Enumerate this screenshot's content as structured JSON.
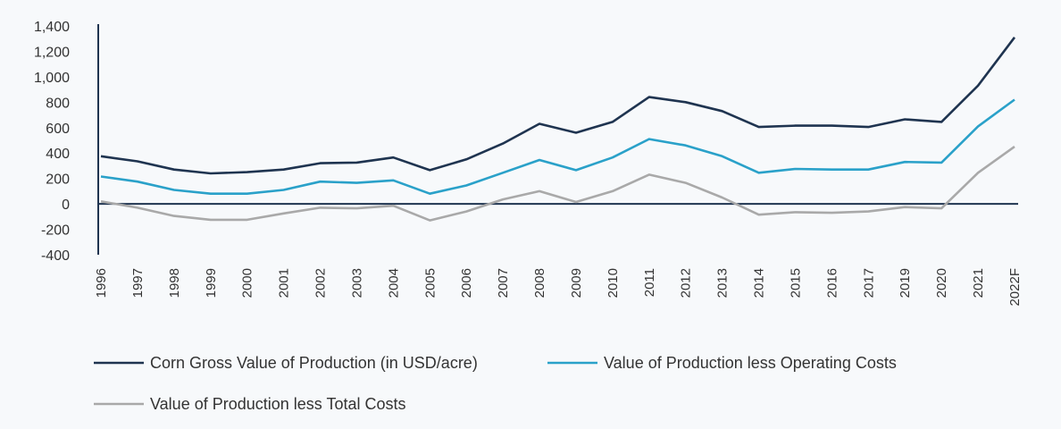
{
  "chart_data": {
    "type": "line",
    "title": "",
    "xlabel": "",
    "ylabel": "",
    "ylim": [
      -400,
      1400
    ],
    "yticks": [
      "1,400",
      "1,200",
      "1,000",
      "800",
      "600",
      "400",
      "200",
      "0",
      "-200",
      "-400"
    ],
    "ytick_values": [
      1400,
      1200,
      1000,
      800,
      600,
      400,
      200,
      0,
      -200,
      -400
    ],
    "categories": [
      "1996",
      "1997",
      "1998",
      "1999",
      "2000",
      "2001",
      "2002",
      "2003",
      "2004",
      "2005",
      "2006",
      "2007",
      "2008",
      "2009",
      "2010",
      "2011",
      "2012",
      "2013",
      "2014",
      "2015",
      "2016",
      "2017",
      "2019",
      "2020",
      "2021",
      "2022F"
    ],
    "grid": false,
    "legend_position": "bottom",
    "series": [
      {
        "name": "Corn Gross Value of Production (in USD/acre)",
        "color": "#1f3450",
        "values": [
          375,
          335,
          270,
          240,
          250,
          270,
          320,
          325,
          365,
          265,
          350,
          475,
          630,
          560,
          645,
          840,
          800,
          730,
          605,
          615,
          615,
          605,
          665,
          645,
          930,
          1310
        ]
      },
      {
        "name": "Value of Production less Operating Costs",
        "color": "#2aa1c9",
        "values": [
          215,
          175,
          110,
          80,
          80,
          110,
          175,
          165,
          185,
          80,
          145,
          245,
          345,
          265,
          365,
          510,
          460,
          375,
          245,
          275,
          270,
          270,
          330,
          325,
          610,
          820
        ]
      },
      {
        "name": "Value of Production less Total Costs",
        "color": "#a9a9a9",
        "values": [
          20,
          -30,
          -95,
          -125,
          -125,
          -75,
          -30,
          -35,
          -15,
          -130,
          -60,
          35,
          100,
          15,
          100,
          230,
          165,
          50,
          -85,
          -65,
          -70,
          -60,
          -25,
          -35,
          245,
          450
        ]
      }
    ],
    "zero_line_color": "#1f3450"
  }
}
